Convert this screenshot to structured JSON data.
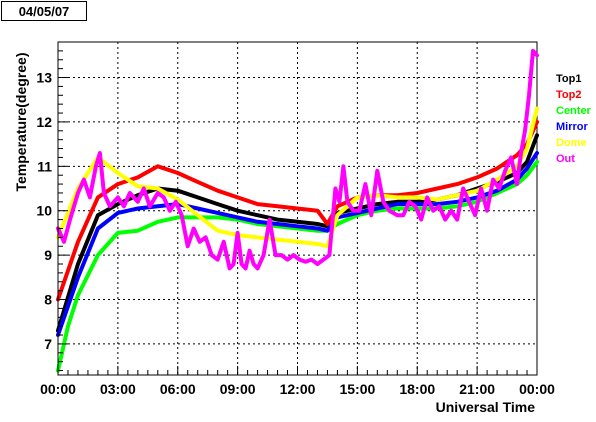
{
  "header": {
    "date": "04/05/07"
  },
  "colors": {
    "Top1": "#000000",
    "Top2": "#ff0000",
    "Center": "#00ff00",
    "Mirror": "#0000ff",
    "Dome": "#ffff00",
    "Out": "#ff00ff"
  },
  "chart_data": {
    "type": "line",
    "title": "",
    "xlabel": "Universal Time",
    "ylabel": "Temperature(degree)",
    "xlim": [
      0,
      24
    ],
    "ylim": [
      6.3,
      13.8
    ],
    "x_ticks": [
      0,
      3,
      6,
      9,
      12,
      15,
      18,
      21,
      24
    ],
    "x_tick_labels": [
      "00:00",
      "03:00",
      "06:00",
      "09:00",
      "12:00",
      "15:00",
      "18:00",
      "21:00",
      "00:00"
    ],
    "y_ticks": [
      7,
      8,
      9,
      10,
      11,
      12,
      13
    ],
    "y_tick_labels": [
      "7",
      "8",
      "9",
      "10",
      "11",
      "12",
      "13"
    ],
    "grid": true,
    "legend_position": "right",
    "series": [
      {
        "name": "Top1",
        "x": [
          0,
          1,
          2,
          3,
          4,
          5,
          6,
          7,
          8,
          9,
          10,
          11,
          12,
          13,
          13.5,
          14,
          15,
          16,
          17,
          18,
          19,
          20,
          21,
          22,
          23,
          23.5,
          24
        ],
        "y": [
          7.3,
          8.8,
          9.9,
          10.15,
          10.35,
          10.5,
          10.45,
          10.3,
          10.15,
          10.0,
          9.9,
          9.8,
          9.75,
          9.7,
          9.65,
          9.95,
          10.05,
          10.15,
          10.2,
          10.2,
          10.25,
          10.35,
          10.5,
          10.65,
          10.85,
          11.1,
          11.7
        ]
      },
      {
        "name": "Top2",
        "x": [
          0,
          1,
          2,
          3,
          4,
          5,
          6,
          7,
          8,
          9,
          10,
          11,
          12,
          13,
          13.5,
          14,
          15,
          16,
          17,
          18,
          19,
          20,
          21,
          22,
          23,
          23.5,
          24
        ],
        "y": [
          8.0,
          9.3,
          10.3,
          10.6,
          10.75,
          11.0,
          10.85,
          10.65,
          10.45,
          10.3,
          10.15,
          10.1,
          10.05,
          10.0,
          9.7,
          10.1,
          10.3,
          10.35,
          10.35,
          10.4,
          10.5,
          10.6,
          10.75,
          10.95,
          11.25,
          11.5,
          12.0
        ]
      },
      {
        "name": "Center",
        "x": [
          0,
          0.5,
          1,
          2,
          3,
          4,
          5,
          6,
          7,
          8,
          9,
          10,
          11,
          12,
          13,
          13.5,
          14,
          15,
          16,
          17,
          18,
          19,
          20,
          21,
          22,
          23,
          23.5,
          24
        ],
        "y": [
          6.4,
          7.4,
          8.1,
          9.0,
          9.5,
          9.55,
          9.75,
          9.85,
          9.85,
          9.85,
          9.8,
          9.7,
          9.65,
          9.6,
          9.55,
          9.55,
          9.7,
          9.9,
          10.0,
          10.05,
          10.05,
          10.05,
          10.1,
          10.2,
          10.4,
          10.6,
          10.8,
          11.1
        ]
      },
      {
        "name": "Mirror",
        "x": [
          0,
          1,
          2,
          3,
          4,
          5,
          6,
          7,
          8,
          9,
          10,
          11,
          12,
          13,
          13.5,
          14,
          15,
          16,
          17,
          18,
          19,
          20,
          21,
          22,
          23,
          23.5,
          24
        ],
        "y": [
          7.2,
          8.5,
          9.6,
          9.95,
          10.05,
          10.1,
          10.15,
          10.05,
          9.95,
          9.85,
          9.75,
          9.7,
          9.65,
          9.6,
          9.55,
          9.85,
          9.95,
          10.05,
          10.15,
          10.15,
          10.15,
          10.2,
          10.3,
          10.45,
          10.7,
          10.95,
          11.3
        ]
      },
      {
        "name": "Dome",
        "x": [
          0,
          1,
          2,
          3,
          4,
          5,
          6,
          7,
          8,
          9,
          10,
          11,
          12,
          13,
          13.5,
          14,
          15,
          16,
          17,
          18,
          19,
          20,
          21,
          22,
          23,
          23.5,
          24
        ],
        "y": [
          9.4,
          10.5,
          11.2,
          10.85,
          10.55,
          10.5,
          10.25,
          9.9,
          9.55,
          9.45,
          9.4,
          9.35,
          9.3,
          9.25,
          9.2,
          9.9,
          10.3,
          10.35,
          10.3,
          10.3,
          10.25,
          10.35,
          10.45,
          10.7,
          11.0,
          11.4,
          12.3
        ]
      },
      {
        "name": "Out",
        "x": [
          0,
          0.3,
          0.6,
          1.0,
          1.3,
          1.6,
          1.9,
          2.1,
          2.3,
          2.6,
          3.0,
          3.3,
          3.6,
          4.0,
          4.3,
          4.6,
          5.0,
          5.3,
          5.6,
          5.9,
          6.2,
          6.5,
          6.8,
          7.1,
          7.4,
          7.7,
          8.0,
          8.3,
          8.6,
          8.8,
          9.0,
          9.2,
          9.4,
          9.6,
          9.8,
          10.0,
          10.3,
          10.6,
          10.9,
          11.2,
          11.5,
          11.8,
          12.1,
          12.4,
          12.7,
          13.0,
          13.3,
          13.6,
          13.9,
          14.1,
          14.3,
          14.5,
          14.8,
          15.1,
          15.4,
          15.7,
          16.0,
          16.3,
          16.6,
          17.0,
          17.3,
          17.6,
          17.9,
          18.2,
          18.5,
          18.8,
          19.1,
          19.4,
          19.7,
          20.0,
          20.3,
          20.6,
          20.9,
          21.2,
          21.5,
          21.8,
          22.1,
          22.4,
          22.7,
          23.0,
          23.2,
          23.4,
          23.6,
          23.8,
          24.0
        ],
        "y": [
          9.6,
          9.3,
          9.8,
          10.4,
          10.7,
          10.3,
          11.0,
          11.3,
          10.4,
          10.1,
          10.3,
          10.1,
          10.4,
          10.2,
          10.5,
          10.1,
          10.4,
          10.3,
          10.0,
          10.2,
          9.9,
          9.2,
          9.6,
          9.3,
          9.4,
          9.0,
          8.9,
          9.3,
          8.7,
          8.8,
          9.5,
          8.8,
          8.7,
          9.1,
          8.8,
          8.7,
          9.0,
          9.8,
          9.0,
          9.0,
          8.9,
          9.0,
          8.9,
          8.85,
          8.9,
          8.8,
          8.9,
          9.0,
          10.5,
          10.2,
          11.0,
          10.2,
          10.0,
          10.0,
          10.6,
          9.9,
          10.9,
          10.2,
          10.0,
          9.9,
          9.9,
          10.2,
          10.1,
          9.8,
          10.3,
          10.0,
          10.1,
          9.8,
          10.0,
          9.8,
          10.5,
          10.2,
          9.9,
          10.5,
          10.0,
          10.7,
          10.5,
          10.9,
          11.2,
          10.6,
          11.3,
          11.8,
          12.6,
          13.6,
          13.5
        ]
      }
    ]
  }
}
